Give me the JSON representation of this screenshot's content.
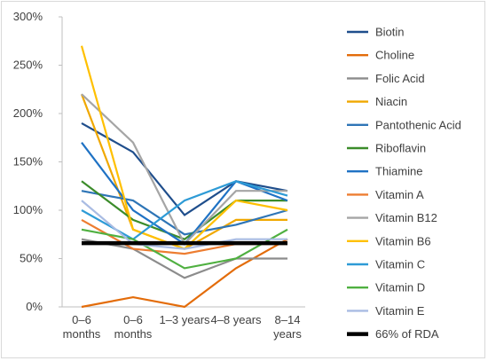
{
  "chart_data": {
    "type": "line",
    "categories": [
      [
        "0–6",
        "months"
      ],
      [
        "0–6",
        "months"
      ],
      [
        "1–3 years"
      ],
      [
        "4–8 years"
      ],
      [
        "8–14",
        "years"
      ]
    ],
    "y_tick_labels": [
      "0%",
      "50%",
      "100%",
      "150%",
      "200%",
      "250%",
      "300%"
    ],
    "ylim": [
      0,
      300
    ],
    "y_unit": "%",
    "grid": false,
    "legend_position": "right",
    "series": [
      {
        "name": "Biotin",
        "color": "#1f4e8c",
        "values": [
          190,
          160,
          95,
          130,
          120
        ]
      },
      {
        "name": "Choline",
        "color": "#e36c0a",
        "values": [
          0,
          10,
          0,
          40,
          70
        ]
      },
      {
        "name": "Folic Acid",
        "color": "#8c8c8c",
        "values": [
          70,
          60,
          30,
          50,
          50
        ]
      },
      {
        "name": "Niacin",
        "color": "#f0a800",
        "values": [
          220,
          80,
          60,
          90,
          90
        ]
      },
      {
        "name": "Pantothenic Acid",
        "color": "#2e75b6",
        "values": [
          120,
          110,
          75,
          85,
          100
        ]
      },
      {
        "name": "Riboflavin",
        "color": "#3b8c2a",
        "values": [
          130,
          90,
          70,
          110,
          110
        ]
      },
      {
        "name": "Thiamine",
        "color": "#1f72c4",
        "values": [
          170,
          100,
          65,
          130,
          110
        ]
      },
      {
        "name": "Vitamin A",
        "color": "#ed7d31",
        "values": [
          90,
          60,
          55,
          65,
          65
        ]
      },
      {
        "name": "Vitamin B12",
        "color": "#a5a5a5",
        "values": [
          220,
          170,
          65,
          120,
          120
        ]
      },
      {
        "name": "Vitamin B6",
        "color": "#ffc000",
        "values": [
          270,
          80,
          60,
          110,
          100
        ]
      },
      {
        "name": "Vitamin C",
        "color": "#2e9bd6",
        "values": [
          100,
          70,
          110,
          130,
          115
        ]
      },
      {
        "name": "Vitamin D",
        "color": "#4fb040",
        "values": [
          80,
          70,
          40,
          50,
          80
        ]
      },
      {
        "name": "Vitamin E",
        "color": "#a9bce3",
        "values": [
          110,
          65,
          60,
          70,
          70
        ]
      },
      {
        "name": "66% of RDA",
        "color": "#000000",
        "values": [
          66,
          66,
          66,
          66,
          66
        ]
      }
    ]
  }
}
